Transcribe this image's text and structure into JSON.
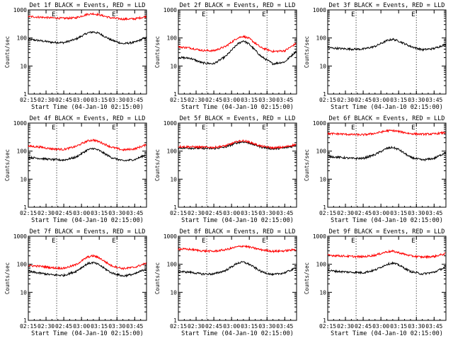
{
  "figure": {
    "colors": {
      "events": "#000000",
      "lld": "#ff0000",
      "axis": "#000000"
    }
  },
  "chart_data": [
    {
      "type": "line",
      "title": "Det 1f BLACK = Events, RED = LLD",
      "xlabel": "Start Time (04-Jan-10 02:15:00)",
      "ylabel": "Counts/sec",
      "yscale": "log",
      "ylim": [
        1,
        1000
      ],
      "ytick_labels": [
        "1",
        "10",
        "100",
        "1000"
      ],
      "xlim_minutes": [
        0,
        100
      ],
      "xtick_minutes": [
        0,
        15,
        30,
        45,
        60,
        75,
        90
      ],
      "x_tick_labels": [
        "02:15",
        "02:30",
        "02:45",
        "03:00",
        "03:15",
        "03:30",
        "03:45"
      ],
      "markers": [
        {
          "label": "E",
          "x_minutes": 24
        },
        {
          "label": "E",
          "x_minutes": 75
        }
      ],
      "series": [
        {
          "color": "black",
          "x_minutes": [
            0,
            10,
            20,
            30,
            40,
            50,
            55,
            60,
            70,
            80,
            90,
            100
          ],
          "values": [
            90,
            80,
            70,
            68,
            90,
            150,
            165,
            145,
            85,
            62,
            70,
            105
          ]
        },
        {
          "color": "red",
          "x_minutes": [
            0,
            10,
            20,
            30,
            40,
            50,
            55,
            60,
            70,
            80,
            90,
            100
          ],
          "values": [
            580,
            550,
            520,
            500,
            520,
            700,
            730,
            670,
            520,
            470,
            480,
            580
          ]
        }
      ]
    },
    {
      "type": "line",
      "title": "Det 2f BLACK = Events, RED = LLD",
      "xlabel": "Start Time (04-Jan-10 02:15:00)",
      "ylabel": "Counts/sec",
      "yscale": "log",
      "ylim": [
        1,
        1000
      ],
      "ytick_labels": [
        "1",
        "10",
        "100",
        "1000"
      ],
      "xlim_minutes": [
        0,
        100
      ],
      "xtick_minutes": [
        0,
        15,
        30,
        45,
        60,
        75,
        90
      ],
      "x_tick_labels": [
        "02:15",
        "02:30",
        "02:45",
        "03:00",
        "03:15",
        "03:30",
        "03:45"
      ],
      "markers": [
        {
          "label": "E",
          "x_minutes": 24
        },
        {
          "label": "E",
          "x_minutes": 75
        }
      ],
      "series": [
        {
          "color": "black",
          "x_minutes": [
            0,
            10,
            20,
            30,
            40,
            50,
            55,
            60,
            70,
            80,
            90,
            100
          ],
          "values": [
            20,
            19,
            13,
            12,
            22,
            60,
            80,
            60,
            22,
            12,
            14,
            35
          ]
        },
        {
          "color": "red",
          "x_minutes": [
            0,
            10,
            20,
            30,
            40,
            50,
            55,
            60,
            70,
            80,
            90,
            100
          ],
          "values": [
            48,
            44,
            36,
            35,
            50,
            100,
            115,
            95,
            45,
            33,
            35,
            65
          ]
        }
      ]
    },
    {
      "type": "line",
      "title": "Det 3f BLACK = Events, RED = LLD",
      "xlabel": "Start Time (04-Jan-10 02:15:00)",
      "ylabel": "Counts/sec",
      "yscale": "log",
      "ylim": [
        1,
        1000
      ],
      "ytick_labels": [
        "1",
        "10",
        "100",
        "1000"
      ],
      "xlim_minutes": [
        0,
        100
      ],
      "xtick_minutes": [
        0,
        15,
        30,
        45,
        60,
        75,
        90
      ],
      "x_tick_labels": [
        "02:15",
        "02:30",
        "02:45",
        "03:00",
        "03:15",
        "03:30",
        "03:45"
      ],
      "markers": [
        {
          "label": "E",
          "x_minutes": 24
        },
        {
          "label": "E",
          "x_minutes": 75
        }
      ],
      "series": [
        {
          "color": "black",
          "x_minutes": [
            0,
            10,
            20,
            30,
            40,
            50,
            55,
            60,
            70,
            80,
            90,
            100
          ],
          "values": [
            45,
            42,
            40,
            40,
            50,
            80,
            90,
            78,
            50,
            38,
            42,
            60
          ]
        }
      ]
    },
    {
      "type": "line",
      "title": "Det 4f BLACK = Events, RED = LLD",
      "xlabel": "Start Time (04-Jan-10 02:15:00)",
      "ylabel": "Counts/sec",
      "yscale": "log",
      "ylim": [
        1,
        1000
      ],
      "ytick_labels": [
        "1",
        "10",
        "100",
        "1000"
      ],
      "xlim_minutes": [
        0,
        100
      ],
      "xtick_minutes": [
        0,
        15,
        30,
        45,
        60,
        75,
        90
      ],
      "x_tick_labels": [
        "02:15",
        "02:30",
        "02:45",
        "03:00",
        "03:15",
        "03:30",
        "03:45"
      ],
      "markers": [
        {
          "label": "E",
          "x_minutes": 24
        },
        {
          "label": "E",
          "x_minutes": 75
        }
      ],
      "series": [
        {
          "color": "black",
          "x_minutes": [
            0,
            10,
            20,
            30,
            40,
            50,
            55,
            60,
            70,
            80,
            90,
            100
          ],
          "values": [
            60,
            55,
            50,
            48,
            60,
            110,
            125,
            105,
            60,
            45,
            50,
            75
          ]
        },
        {
          "color": "red",
          "x_minutes": [
            0,
            10,
            20,
            30,
            40,
            50,
            55,
            60,
            70,
            80,
            90,
            100
          ],
          "values": [
            150,
            140,
            120,
            115,
            145,
            230,
            250,
            215,
            140,
            110,
            120,
            170
          ]
        }
      ]
    },
    {
      "type": "line",
      "title": "Det 5f BLACK = Events, RED = LLD",
      "xlabel": "Start Time (04-Jan-10 02:15:00)",
      "ylabel": "Counts/sec",
      "yscale": "log",
      "ylim": [
        1,
        1000
      ],
      "ytick_labels": [
        "1",
        "10",
        "100",
        "1000"
      ],
      "xlim_minutes": [
        0,
        100
      ],
      "xtick_minutes": [
        0,
        15,
        30,
        45,
        60,
        75,
        90
      ],
      "x_tick_labels": [
        "02:15",
        "02:30",
        "02:45",
        "03:00",
        "03:15",
        "03:30",
        "03:45"
      ],
      "markers": [
        {
          "label": "E",
          "x_minutes": 24
        },
        {
          "label": "E",
          "x_minutes": 75
        }
      ],
      "series": [
        {
          "color": "black",
          "x_minutes": [
            0,
            10,
            20,
            30,
            40,
            50,
            55,
            60,
            70,
            80,
            90,
            100
          ],
          "values": [
            130,
            128,
            125,
            123,
            140,
            200,
            215,
            195,
            140,
            120,
            130,
            160
          ]
        },
        {
          "color": "red",
          "x_minutes": [
            0,
            10,
            20,
            30,
            40,
            50,
            55,
            60,
            70,
            80,
            90,
            100
          ],
          "values": [
            145,
            142,
            138,
            135,
            155,
            220,
            235,
            210,
            150,
            130,
            140,
            175
          ]
        }
      ]
    },
    {
      "type": "line",
      "title": "Det 6f BLACK = Events, RED = LLD",
      "xlabel": "Start Time (04-Jan-10 02:15:00)",
      "ylabel": "Counts/sec",
      "yscale": "log",
      "ylim": [
        1,
        1000
      ],
      "ytick_labels": [
        "1",
        "10",
        "100",
        "1000"
      ],
      "xlim_minutes": [
        0,
        100
      ],
      "xtick_minutes": [
        0,
        15,
        30,
        45,
        60,
        75,
        90
      ],
      "x_tick_labels": [
        "02:15",
        "02:30",
        "02:45",
        "03:00",
        "03:15",
        "03:30",
        "03:45"
      ],
      "markers": [
        {
          "label": "E",
          "x_minutes": 24
        },
        {
          "label": "E",
          "x_minutes": 75
        }
      ],
      "series": [
        {
          "color": "black",
          "x_minutes": [
            0,
            10,
            20,
            30,
            40,
            50,
            55,
            60,
            70,
            80,
            90,
            100
          ],
          "values": [
            65,
            60,
            55,
            55,
            75,
            125,
            135,
            115,
            60,
            48,
            55,
            90
          ]
        },
        {
          "color": "red",
          "x_minutes": [
            0,
            10,
            20,
            30,
            40,
            50,
            55,
            60,
            70,
            80,
            90,
            100
          ],
          "values": [
            420,
            410,
            390,
            380,
            430,
            530,
            540,
            500,
            420,
            400,
            410,
            460
          ]
        }
      ]
    },
    {
      "type": "line",
      "title": "Det 7f BLACK = Events, RED = LLD",
      "xlabel": "Start Time (04-Jan-10 02:15:00)",
      "ylabel": "Counts/sec",
      "yscale": "log",
      "ylim": [
        1,
        1000
      ],
      "ytick_labels": [
        "1",
        "10",
        "100",
        "1000"
      ],
      "xlim_minutes": [
        0,
        100
      ],
      "xtick_minutes": [
        0,
        15,
        30,
        45,
        60,
        75,
        90
      ],
      "x_tick_labels": [
        "02:15",
        "02:30",
        "02:45",
        "03:00",
        "03:15",
        "03:30",
        "03:45"
      ],
      "markers": [
        {
          "label": "E",
          "x_minutes": 24
        },
        {
          "label": "E",
          "x_minutes": 75
        }
      ],
      "series": [
        {
          "color": "black",
          "x_minutes": [
            0,
            10,
            20,
            30,
            40,
            50,
            55,
            60,
            70,
            80,
            90,
            100
          ],
          "values": [
            55,
            48,
            42,
            40,
            55,
            105,
            115,
            95,
            50,
            38,
            45,
            70
          ]
        },
        {
          "color": "red",
          "x_minutes": [
            0,
            10,
            20,
            30,
            40,
            50,
            55,
            60,
            70,
            80,
            90,
            100
          ],
          "values": [
            90,
            85,
            75,
            72,
            95,
            180,
            200,
            170,
            90,
            70,
            78,
            110
          ]
        }
      ]
    },
    {
      "type": "line",
      "title": "Det 8f BLACK = Events, RED = LLD",
      "xlabel": "Start Time (04-Jan-10 02:15:00)",
      "ylabel": "Counts/sec",
      "yscale": "log",
      "ylim": [
        1,
        1000
      ],
      "ytick_labels": [
        "1",
        "10",
        "100",
        "1000"
      ],
      "xlim_minutes": [
        0,
        100
      ],
      "xtick_minutes": [
        0,
        15,
        30,
        45,
        60,
        75,
        90
      ],
      "x_tick_labels": [
        "02:15",
        "02:30",
        "02:45",
        "03:00",
        "03:15",
        "03:30",
        "03:45"
      ],
      "markers": [
        {
          "label": "E",
          "x_minutes": 24
        },
        {
          "label": "E",
          "x_minutes": 75
        }
      ],
      "series": [
        {
          "color": "black",
          "x_minutes": [
            0,
            10,
            20,
            30,
            40,
            50,
            55,
            60,
            70,
            80,
            90,
            100
          ],
          "values": [
            55,
            52,
            45,
            45,
            60,
            110,
            120,
            100,
            55,
            42,
            50,
            75
          ]
        },
        {
          "color": "red",
          "x_minutes": [
            0,
            10,
            20,
            30,
            40,
            50,
            55,
            60,
            70,
            80,
            90,
            100
          ],
          "values": [
            350,
            340,
            300,
            290,
            330,
            420,
            450,
            410,
            330,
            290,
            300,
            340
          ]
        }
      ]
    },
    {
      "type": "line",
      "title": "Det 9f BLACK = Events, RED = LLD",
      "xlabel": "Start Time (04-Jan-10 02:15:00)",
      "ylabel": "Counts/sec",
      "yscale": "log",
      "ylim": [
        1,
        1000
      ],
      "ytick_labels": [
        "1",
        "10",
        "100",
        "1000"
      ],
      "xlim_minutes": [
        0,
        100
      ],
      "xtick_minutes": [
        0,
        15,
        30,
        45,
        60,
        75,
        90
      ],
      "x_tick_labels": [
        "02:15",
        "02:30",
        "02:45",
        "03:00",
        "03:15",
        "03:30",
        "03:45"
      ],
      "markers": [
        {
          "label": "E",
          "x_minutes": 24
        },
        {
          "label": "E",
          "x_minutes": 75
        }
      ],
      "series": [
        {
          "color": "black",
          "x_minutes": [
            0,
            10,
            20,
            30,
            40,
            50,
            55,
            60,
            70,
            80,
            90,
            100
          ],
          "values": [
            60,
            55,
            52,
            50,
            62,
            100,
            110,
            95,
            55,
            45,
            52,
            80
          ]
        },
        {
          "color": "red",
          "x_minutes": [
            0,
            10,
            20,
            30,
            40,
            50,
            55,
            60,
            70,
            80,
            90,
            100
          ],
          "values": [
            210,
            200,
            190,
            185,
            210,
            280,
            290,
            260,
            200,
            180,
            190,
            240
          ]
        }
      ]
    }
  ]
}
